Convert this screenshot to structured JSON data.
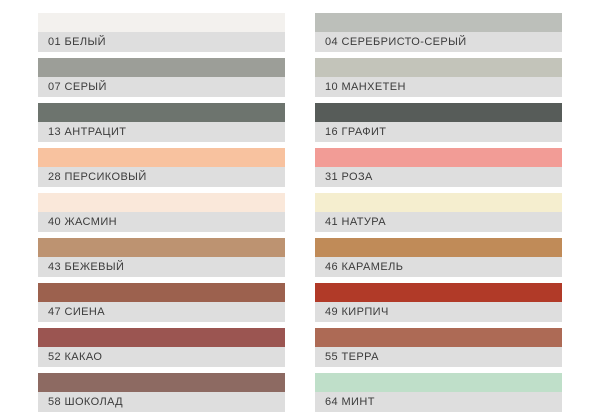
{
  "palette": {
    "background": "#ffffff",
    "label_bg": "#dedede",
    "label_text_color": "#3b3b3b",
    "columns": [
      {
        "items": [
          {
            "code": "01",
            "name": "БЕЛЫЙ",
            "label": "01 БЕЛЫЙ",
            "color": "#f3f1ee"
          },
          {
            "code": "07",
            "name": "СЕРЫЙ",
            "label": "07 СЕРЫЙ",
            "color": "#9c9e98"
          },
          {
            "code": "13",
            "name": "АНТРАЦИТ",
            "label": "13 АНТРАЦИТ",
            "color": "#6d746e"
          },
          {
            "code": "28",
            "name": "ПЕРСИКОВЫЙ",
            "label": "28 ПЕРСИКОВЫЙ",
            "color": "#f8c29f"
          },
          {
            "code": "40",
            "name": "ЖАСМИН",
            "label": "40 ЖАСМИН",
            "color": "#fae8da"
          },
          {
            "code": "43",
            "name": "БЕЖЕВЫЙ",
            "label": "43 БЕЖЕВЫЙ",
            "color": "#bd9371"
          },
          {
            "code": "47",
            "name": "СИЕНА",
            "label": "47 СИЕНА",
            "color": "#9c614e"
          },
          {
            "code": "52",
            "name": "КАКАО",
            "label": "52 КАКАО",
            "color": "#9b5551"
          },
          {
            "code": "58",
            "name": "ШОКОЛАД",
            "label": "58 ШОКОЛАД",
            "color": "#8d6a62"
          }
        ]
      },
      {
        "items": [
          {
            "code": "04",
            "name": "СЕРЕБРИСТО-СЕРЫЙ",
            "label": "04 СЕРЕБРИСТО-СЕРЫЙ",
            "color": "#bcbfba"
          },
          {
            "code": "10",
            "name": "МАНХЕТЕН",
            "label": "10 МАНХЕТЕН",
            "color": "#c3c4ba"
          },
          {
            "code": "16",
            "name": "ГРАФИТ",
            "label": "16 ГРАФИТ",
            "color": "#575c59"
          },
          {
            "code": "31",
            "name": "РОЗА",
            "label": "31 РОЗА",
            "color": "#f29c96"
          },
          {
            "code": "41",
            "name": "НАТУРА",
            "label": "41 НАТУРА",
            "color": "#f5eecf"
          },
          {
            "code": "46",
            "name": "КАРАМЕЛЬ",
            "label": "46 КАРАМЕЛЬ",
            "color": "#c08b58"
          },
          {
            "code": "49",
            "name": "КИРПИЧ",
            "label": "49 КИРПИЧ",
            "color": "#b13a28"
          },
          {
            "code": "55",
            "name": "ТЕРРА",
            "label": "55 ТЕРРА",
            "color": "#ad6a55"
          },
          {
            "code": "64",
            "name": "МИНТ",
            "label": "64 МИНТ",
            "color": "#bfdfc9"
          }
        ]
      }
    ]
  }
}
